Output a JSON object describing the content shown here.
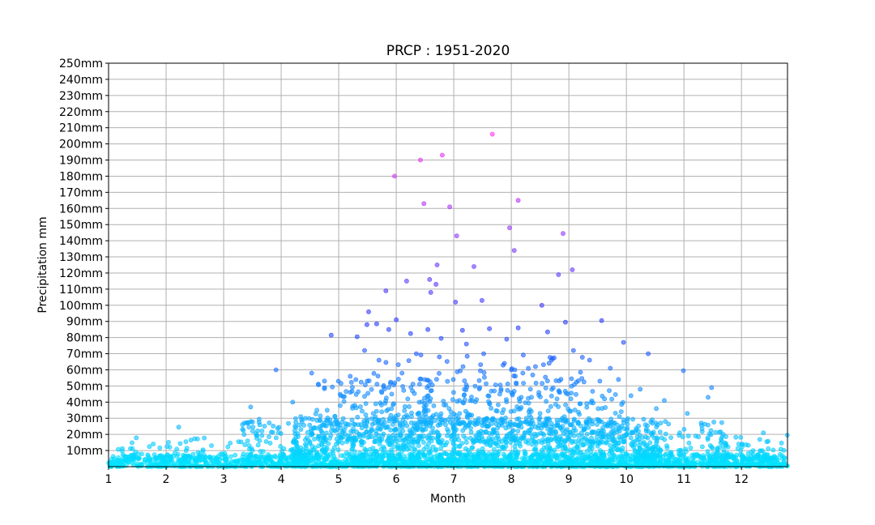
{
  "chart_data": {
    "type": "scatter",
    "title": "PRCP : 1951-2020",
    "xlabel": "Month",
    "ylabel": "Precipitation mm",
    "xlim": [
      1,
      12.8
    ],
    "ylim": [
      0,
      250
    ],
    "x_ticks": [
      1,
      2,
      3,
      4,
      5,
      6,
      7,
      8,
      9,
      10,
      11,
      12
    ],
    "x_tick_labels": [
      "1",
      "2",
      "3",
      "4",
      "5",
      "6",
      "7",
      "8",
      "9",
      "10",
      "11",
      "12"
    ],
    "y_ticks": [
      10,
      20,
      30,
      40,
      50,
      60,
      70,
      80,
      90,
      100,
      110,
      120,
      130,
      140,
      150,
      160,
      170,
      180,
      190,
      200,
      210,
      220,
      230,
      240,
      250
    ],
    "y_tick_labels": [
      "10mm",
      "20mm",
      "30mm",
      "40mm",
      "50mm",
      "60mm",
      "70mm",
      "80mm",
      "90mm",
      "100mm",
      "110mm",
      "120mm",
      "130mm",
      "140mm",
      "150mm",
      "160mm",
      "170mm",
      "180mm",
      "190mm",
      "200mm",
      "210mm",
      "220mm",
      "230mm",
      "240mm",
      "250mm"
    ],
    "grid": true,
    "color_scale": "cool (cyan at 0mm to magenta at max)",
    "color_low": "#00e5ff",
    "color_high": "#ff33ee",
    "points": [
      [
        5.97,
        180
      ],
      [
        6.42,
        190
      ],
      [
        6.8,
        193
      ],
      [
        7.67,
        206
      ],
      [
        6.48,
        163
      ],
      [
        6.93,
        161
      ],
      [
        7.05,
        143
      ],
      [
        7.97,
        148
      ],
      [
        8.12,
        165
      ],
      [
        8.05,
        134
      ],
      [
        8.9,
        144.5
      ],
      [
        6.71,
        125
      ],
      [
        7.35,
        124
      ],
      [
        8.82,
        119
      ],
      [
        9.06,
        122
      ],
      [
        6.18,
        115
      ],
      [
        6.58,
        116
      ],
      [
        6.69,
        113
      ],
      [
        5.82,
        109
      ],
      [
        6.6,
        108
      ],
      [
        7.03,
        102
      ],
      [
        7.49,
        103
      ],
      [
        8.53,
        100
      ],
      [
        5.52,
        96
      ],
      [
        6.0,
        91
      ],
      [
        9.57,
        90.5
      ],
      [
        8.94,
        89.5
      ],
      [
        5.49,
        88
      ],
      [
        5.66,
        88.5
      ],
      [
        4.87,
        81.5
      ],
      [
        5.32,
        80.5
      ],
      [
        5.87,
        85
      ],
      [
        6.25,
        82.5
      ],
      [
        6.55,
        85
      ],
      [
        6.78,
        79.5
      ],
      [
        7.15,
        84.5
      ],
      [
        7.62,
        85.5
      ],
      [
        7.92,
        79
      ],
      [
        8.12,
        86
      ],
      [
        8.63,
        83.5
      ],
      [
        9.95,
        77
      ],
      [
        3.91,
        60
      ],
      [
        10.38,
        70
      ],
      [
        10.99,
        59.5
      ],
      [
        4.53,
        58
      ],
      [
        5.2,
        56
      ],
      [
        5.45,
        72
      ],
      [
        5.7,
        66
      ],
      [
        6.1,
        58
      ],
      [
        6.35,
        70
      ],
      [
        6.75,
        68
      ],
      [
        7.22,
        76
      ],
      [
        7.52,
        70
      ],
      [
        7.88,
        64
      ],
      [
        8.2,
        58
      ],
      [
        8.42,
        62
      ],
      [
        8.7,
        66
      ],
      [
        9.08,
        72
      ],
      [
        9.36,
        66
      ],
      [
        9.72,
        61
      ],
      [
        10.24,
        48
      ],
      [
        10.66,
        41
      ],
      [
        11.42,
        43
      ],
      [
        4.2,
        40
      ],
      [
        4.62,
        35
      ],
      [
        5.04,
        44
      ],
      [
        5.28,
        38
      ],
      [
        5.75,
        46
      ],
      [
        6.2,
        42
      ],
      [
        6.6,
        47
      ],
      [
        7.1,
        41
      ],
      [
        7.45,
        49
      ],
      [
        7.8,
        45
      ],
      [
        8.35,
        43
      ],
      [
        8.84,
        46
      ],
      [
        9.2,
        39
      ],
      [
        9.62,
        42
      ],
      [
        10.08,
        44
      ],
      [
        10.52,
        36
      ],
      [
        11.48,
        49
      ],
      [
        3.47,
        37
      ],
      [
        3.41,
        27
      ],
      [
        2.22,
        24.5
      ],
      [
        4.34,
        31
      ],
      [
        4.85,
        29
      ],
      [
        5.6,
        33
      ],
      [
        6.45,
        31
      ],
      [
        6.95,
        34
      ],
      [
        7.7,
        29
      ],
      [
        8.5,
        33
      ],
      [
        9.3,
        28
      ],
      [
        9.88,
        31
      ],
      [
        10.45,
        29
      ],
      [
        11.06,
        33
      ],
      [
        11.3,
        27
      ],
      [
        12.38,
        21
      ]
    ],
    "bulk_clouds": [
      {
        "x_min": 1,
        "x_max": 12.8,
        "y_min": 0,
        "y_max": 8,
        "count": 1400
      },
      {
        "x_min": 1,
        "x_max": 3.6,
        "y_min": 0,
        "y_max": 18,
        "count": 90
      },
      {
        "x_min": 3.3,
        "x_max": 4.4,
        "y_min": 0,
        "y_max": 30,
        "count": 110
      },
      {
        "x_min": 4.2,
        "x_max": 10.6,
        "y_min": 0,
        "y_max": 30,
        "count": 1300
      },
      {
        "x_min": 4.6,
        "x_max": 10.0,
        "y_min": 15,
        "y_max": 55,
        "count": 380
      },
      {
        "x_min": 5.6,
        "x_max": 9.4,
        "y_min": 25,
        "y_max": 70,
        "count": 200
      },
      {
        "x_min": 10.2,
        "x_max": 11.8,
        "y_min": 0,
        "y_max": 28,
        "count": 160
      },
      {
        "x_min": 11.4,
        "x_max": 12.8,
        "y_min": 0,
        "y_max": 20,
        "count": 80
      }
    ]
  }
}
